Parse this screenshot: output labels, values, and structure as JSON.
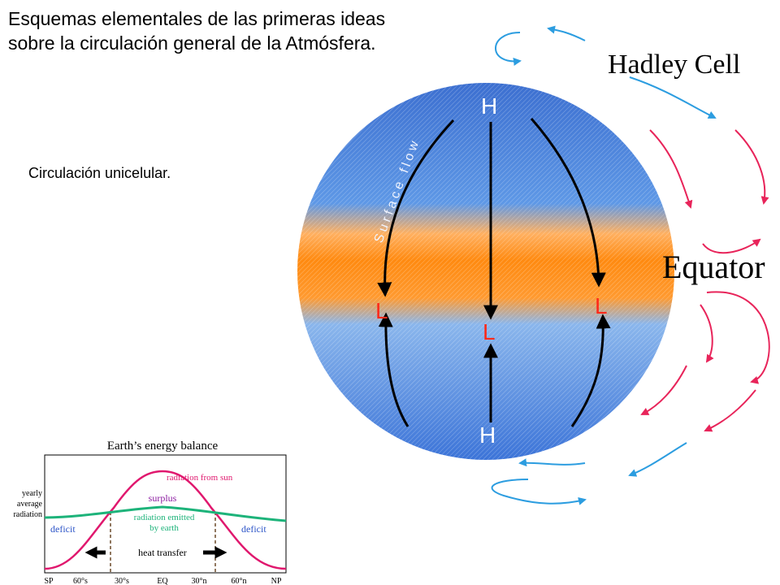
{
  "slide": {
    "title": "Esquemas elementales de las primeras ideas sobre la circulación general de la Atmósfera.",
    "subtitle": "Circulación unicelular."
  },
  "globe": {
    "hadley_label": "Hadley Cell",
    "equator_label": "Equator",
    "surface_flow_label": "Surface flow",
    "high_label": "H",
    "low_label": "L"
  },
  "energy_chart": {
    "title": "Earth’s energy balance",
    "ylabel_lines": [
      "yearly",
      "average",
      "radiation"
    ],
    "sun_label": "radiation from sun",
    "surplus_label": "surplus",
    "emitted_label_lines": [
      "radiation emitted",
      "by earth"
    ],
    "deficit_label": "deficit",
    "heat_label": "heat transfer",
    "ticks": [
      "SP",
      "60°s",
      "30°s",
      "EQ",
      "30°n",
      "60°n",
      "NP"
    ]
  },
  "colors": {
    "sun_curve": "#e0186e",
    "earth_curve": "#1db37a",
    "surplus_text": "#8b1aa0",
    "deficit_text": "#2d55c8",
    "cold": "#4a7fd4",
    "warm": "#ff8c00",
    "red_arrow": "#e8245a",
    "blue_arrow": "#2c9de0",
    "marker_red": "#ff2a1a"
  }
}
